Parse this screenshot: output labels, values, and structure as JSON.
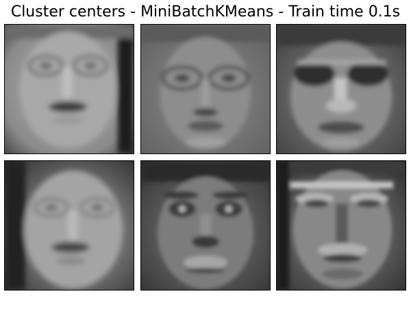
{
  "title": "Cluster centers - MiniBatchKMeans - Train time 0.1s",
  "cluster_centers": [
    {
      "index": 0,
      "tone": "light",
      "glasses": true
    },
    {
      "index": 1,
      "tone": "mid",
      "glasses": true
    },
    {
      "index": 2,
      "tone": "dark-eyes",
      "glasses": true
    },
    {
      "index": 3,
      "tone": "light",
      "glasses": true
    },
    {
      "index": 4,
      "tone": "mid",
      "glasses": false
    },
    {
      "index": 5,
      "tone": "mid",
      "glasses": false
    }
  ]
}
